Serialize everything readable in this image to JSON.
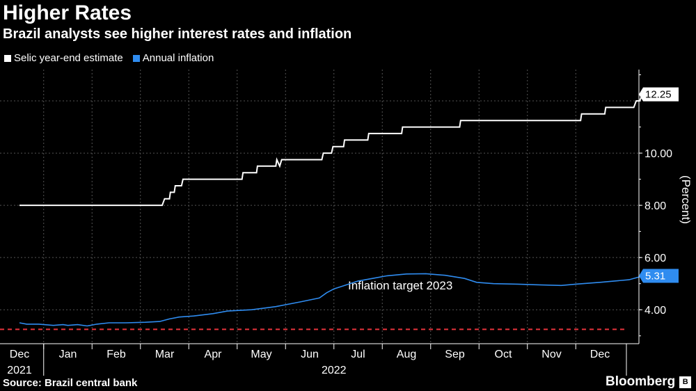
{
  "header": {
    "title": "Higher Rates",
    "subtitle": "Brazil analysts see higher interest rates and inflation"
  },
  "legend": {
    "items": [
      {
        "label": "Selic year-end estimate",
        "color": "#ffffff"
      },
      {
        "label": "Annual inflation",
        "color": "#2f8cf0"
      }
    ]
  },
  "footer": {
    "source": "Source: Brazil central bank",
    "brand": "Bloomberg"
  },
  "chart_data": {
    "type": "line",
    "title": "Higher Rates",
    "subtitle": "Brazil analysts see higher interest rates and inflation",
    "ylabel": "(Percent)",
    "ylim": [
      2.7,
      13.2
    ],
    "yticks": [
      4.0,
      6.0,
      8.0,
      10.0
    ],
    "ytick_labels": [
      "4.00",
      "6.00",
      "8.00",
      "10.00"
    ],
    "grid": true,
    "legend_position": "top-left",
    "x_month_labels": [
      "Dec",
      "Jan",
      "Feb",
      "Mar",
      "Apr",
      "May",
      "Jun",
      "Jul",
      "Aug",
      "Sep",
      "Oct",
      "Nov",
      "Dec"
    ],
    "x_year_labels": [
      {
        "label": "2021",
        "month_index": 0
      },
      {
        "label": "2022",
        "month_index": 6.5
      }
    ],
    "series": [
      {
        "name": "Selic year-end estimate",
        "color": "#ffffff",
        "last_value_label": "12.25",
        "points": [
          [
            0,
            8.0
          ],
          [
            2.95,
            8.0
          ],
          [
            3.0,
            8.25
          ],
          [
            3.1,
            8.25
          ],
          [
            3.12,
            8.5
          ],
          [
            3.2,
            8.5
          ],
          [
            3.22,
            8.75
          ],
          [
            3.35,
            8.75
          ],
          [
            3.38,
            9.0
          ],
          [
            4.6,
            9.0
          ],
          [
            4.62,
            9.25
          ],
          [
            4.9,
            9.25
          ],
          [
            4.92,
            9.5
          ],
          [
            5.2,
            9.5
          ],
          [
            5.22,
            9.5
          ],
          [
            5.3,
            9.5
          ],
          [
            5.32,
            9.75
          ],
          [
            5.38,
            9.5
          ],
          [
            5.42,
            9.75
          ],
          [
            6.25,
            9.75
          ],
          [
            6.28,
            10.0
          ],
          [
            6.45,
            10.0
          ],
          [
            6.48,
            10.25
          ],
          [
            6.7,
            10.25
          ],
          [
            6.72,
            10.5
          ],
          [
            7.2,
            10.5
          ],
          [
            7.22,
            10.75
          ],
          [
            7.9,
            10.75
          ],
          [
            7.92,
            11.0
          ],
          [
            9.1,
            11.0
          ],
          [
            9.12,
            11.25
          ],
          [
            11.6,
            11.25
          ],
          [
            11.62,
            11.5
          ],
          [
            12.1,
            11.5
          ],
          [
            12.12,
            11.75
          ],
          [
            12.7,
            11.75
          ],
          [
            12.75,
            12.0
          ],
          [
            12.82,
            12.0
          ],
          [
            12.88,
            12.25
          ],
          [
            12.9,
            12.25
          ]
        ]
      },
      {
        "name": "Annual inflation",
        "color": "#2f8cf0",
        "last_value_label": "5.31",
        "points": [
          [
            0,
            3.5
          ],
          [
            0.15,
            3.45
          ],
          [
            0.4,
            3.45
          ],
          [
            0.7,
            3.4
          ],
          [
            0.9,
            3.43
          ],
          [
            1.0,
            3.4
          ],
          [
            1.2,
            3.43
          ],
          [
            1.4,
            3.38
          ],
          [
            1.6,
            3.45
          ],
          [
            1.85,
            3.5
          ],
          [
            2.2,
            3.5
          ],
          [
            2.6,
            3.52
          ],
          [
            2.9,
            3.55
          ],
          [
            3.1,
            3.65
          ],
          [
            3.3,
            3.72
          ],
          [
            3.6,
            3.76
          ],
          [
            4.0,
            3.85
          ],
          [
            4.3,
            3.95
          ],
          [
            4.8,
            4.0
          ],
          [
            5.3,
            4.12
          ],
          [
            5.8,
            4.3
          ],
          [
            6.2,
            4.45
          ],
          [
            6.35,
            4.65
          ],
          [
            6.5,
            4.8
          ],
          [
            6.7,
            4.92
          ],
          [
            7.0,
            5.1
          ],
          [
            7.3,
            5.2
          ],
          [
            7.6,
            5.3
          ],
          [
            8.0,
            5.37
          ],
          [
            8.4,
            5.38
          ],
          [
            8.8,
            5.32
          ],
          [
            9.2,
            5.2
          ],
          [
            9.45,
            5.05
          ],
          [
            9.8,
            5.0
          ],
          [
            10.3,
            4.98
          ],
          [
            10.8,
            4.95
          ],
          [
            11.2,
            4.93
          ],
          [
            11.5,
            4.98
          ],
          [
            12.0,
            5.05
          ],
          [
            12.3,
            5.1
          ],
          [
            12.6,
            5.15
          ],
          [
            12.9,
            5.3
          ]
        ]
      }
    ],
    "reference_lines": [
      {
        "label": "Inflation target 2023",
        "value": 3.25,
        "color": "#e8333c",
        "style": "dashed"
      }
    ]
  }
}
